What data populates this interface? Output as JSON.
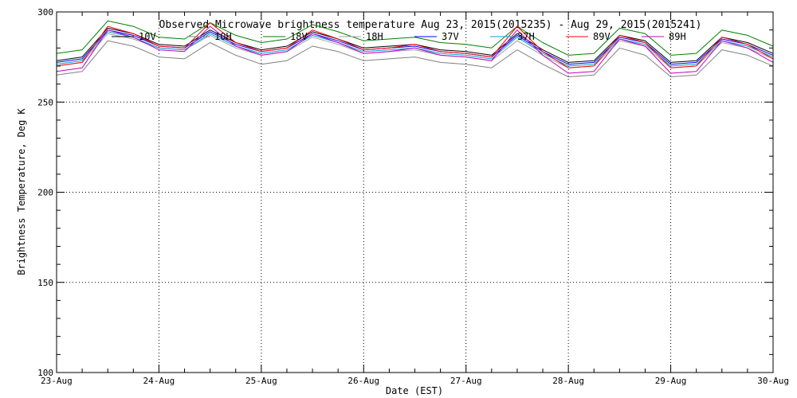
{
  "chart_data": {
    "type": "line",
    "title": "Observed Microwave brightness temperature Aug 23, 2015(2015235) - Aug 29, 2015(2015241)",
    "xlabel": "Date (EST)",
    "ylabel": "Brightness Temperature, Deg K",
    "xlim": [
      "2015-08-23",
      "2015-08-30"
    ],
    "ylim": [
      100,
      300
    ],
    "x_tick_labels": [
      "23-Aug",
      "24-Aug",
      "25-Aug",
      "26-Aug",
      "27-Aug",
      "28-Aug",
      "29-Aug",
      "30-Aug"
    ],
    "y_tick_labels": [
      "100",
      "150",
      "200",
      "250",
      "300"
    ],
    "grid": true,
    "legend_position": "top",
    "x": [
      "2015-08-23 00:00",
      "2015-08-23 06:00",
      "2015-08-23 12:00",
      "2015-08-23 18:00",
      "2015-08-24 00:00",
      "2015-08-24 06:00",
      "2015-08-24 12:00",
      "2015-08-24 18:00",
      "2015-08-25 00:00",
      "2015-08-25 06:00",
      "2015-08-25 12:00",
      "2015-08-25 18:00",
      "2015-08-26 00:00",
      "2015-08-26 06:00",
      "2015-08-26 12:00",
      "2015-08-26 18:00",
      "2015-08-27 00:00",
      "2015-08-27 06:00",
      "2015-08-27 12:00",
      "2015-08-27 18:00",
      "2015-08-28 00:00",
      "2015-08-28 06:00",
      "2015-08-28 12:00",
      "2015-08-28 18:00",
      "2015-08-29 00:00",
      "2015-08-29 06:00",
      "2015-08-29 12:00",
      "2015-08-29 18:00",
      "2015-08-30 00:00"
    ],
    "series": [
      {
        "name": "10V",
        "color": "#000000",
        "values": [
          273,
          275,
          291,
          288,
          282,
          281,
          290,
          283,
          279,
          281,
          289,
          285,
          280,
          281,
          282,
          279,
          278,
          276,
          288,
          279,
          272,
          273,
          287,
          284,
          272,
          273,
          286,
          283,
          277
        ]
      },
      {
        "name": "10H",
        "color": "#808080",
        "values": [
          265,
          267,
          284,
          281,
          275,
          274,
          283,
          276,
          271,
          273,
          281,
          278,
          273,
          274,
          275,
          272,
          271,
          269,
          279,
          271,
          264,
          265,
          280,
          276,
          264,
          265,
          279,
          276,
          270
        ]
      },
      {
        "name": "18V",
        "color": "#008000",
        "values": [
          277,
          279,
          295,
          292,
          286,
          285,
          294,
          287,
          283,
          285,
          293,
          289,
          284,
          285,
          286,
          283,
          282,
          280,
          292,
          283,
          276,
          277,
          291,
          288,
          276,
          277,
          290,
          287,
          281
        ]
      },
      {
        "name": "18H",
        "color": "#a0a0a0",
        "values": [
          270,
          272,
          288,
          285,
          280,
          279,
          287,
          280,
          276,
          278,
          286,
          282,
          277,
          278,
          279,
          276,
          275,
          273,
          284,
          276,
          269,
          270,
          284,
          281,
          269,
          270,
          283,
          280,
          274
        ]
      },
      {
        "name": "37V",
        "color": "#0000ff",
        "values": [
          272,
          274,
          290,
          287,
          281,
          280,
          289,
          282,
          278,
          280,
          288,
          284,
          279,
          280,
          281,
          278,
          277,
          275,
          287,
          278,
          271,
          272,
          286,
          283,
          271,
          272,
          285,
          282,
          276
        ]
      },
      {
        "name": "37H",
        "color": "#00a0d0",
        "values": [
          271,
          273,
          289,
          286,
          280,
          279,
          288,
          281,
          277,
          279,
          287,
          283,
          278,
          279,
          280,
          277,
          276,
          274,
          286,
          277,
          270,
          271,
          285,
          282,
          270,
          271,
          284,
          281,
          275
        ]
      },
      {
        "name": "89V",
        "color": "#ff0000",
        "values": [
          270,
          272,
          292,
          288,
          281,
          280,
          294,
          283,
          278,
          280,
          290,
          285,
          279,
          280,
          282,
          278,
          277,
          275,
          292,
          278,
          269,
          270,
          287,
          283,
          269,
          270,
          286,
          282,
          274
        ]
      },
      {
        "name": "89H",
        "color": "#c000c0",
        "values": [
          267,
          269,
          290,
          286,
          279,
          278,
          292,
          281,
          276,
          278,
          288,
          283,
          277,
          278,
          280,
          276,
          275,
          273,
          290,
          276,
          266,
          267,
          285,
          281,
          266,
          267,
          284,
          280,
          272
        ]
      }
    ]
  }
}
